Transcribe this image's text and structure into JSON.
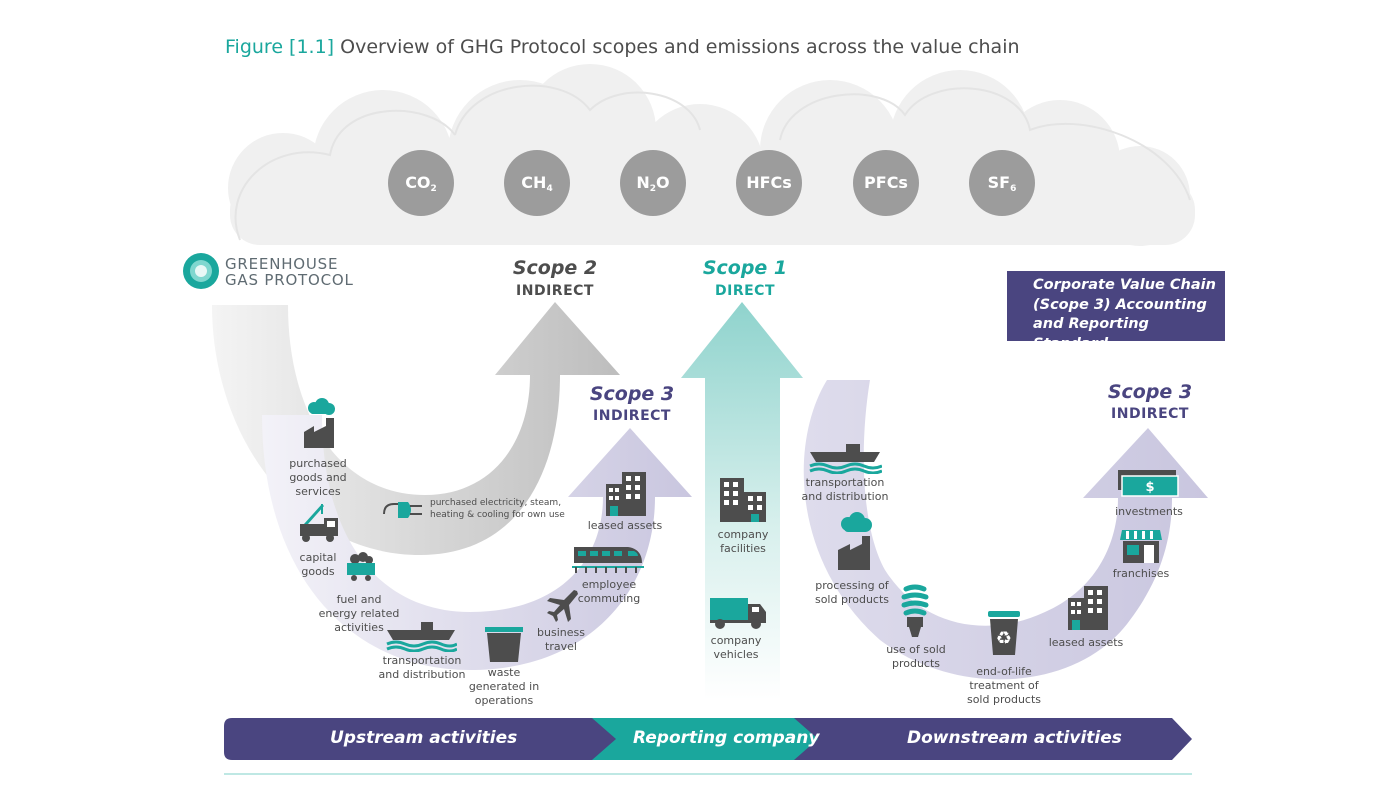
{
  "figure": {
    "label": "Figure [1.1]",
    "title": "Overview of GHG Protocol scopes and emissions across the value chain"
  },
  "logo": {
    "line1": "GREENHOUSE",
    "line2": "GAS PROTOCOL"
  },
  "gases": [
    {
      "base": "CO",
      "sub": "2"
    },
    {
      "base": "CH",
      "sub": "4"
    },
    {
      "base": "N",
      "sub": "2",
      "tail": "O"
    },
    {
      "base": "HFCs",
      "sub": ""
    },
    {
      "base": "PFCs",
      "sub": ""
    },
    {
      "base": "SF",
      "sub": "6"
    }
  ],
  "scopes": {
    "scope2": {
      "title": "Scope 2",
      "sub": "INDIRECT"
    },
    "scope1": {
      "title": "Scope 1",
      "sub": "DIRECT"
    },
    "scope3_up": {
      "title": "Scope 3",
      "sub": "INDIRECT"
    },
    "scope3_down": {
      "title": "Scope 3",
      "sub": "INDIRECT"
    }
  },
  "standard_box": {
    "line1": "Corporate Value Chain",
    "line2": "(Scope 3) Accounting",
    "line3": "and Reporting Standard"
  },
  "upstream": {
    "purchased_goods": [
      "purchased",
      "goods and",
      "services"
    ],
    "capital_goods": [
      "capital",
      "goods"
    ],
    "fuel_energy": [
      "fuel and",
      "energy related",
      "activities"
    ],
    "transport": [
      "transportation",
      "and distribution"
    ],
    "waste": [
      "waste",
      "generated in",
      "operations"
    ],
    "business_travel": [
      "business",
      "travel"
    ],
    "employee_commuting": [
      "employee",
      "commuting"
    ],
    "leased_assets": [
      "leased assets"
    ],
    "purchased_electricity": [
      "purchased electricity, steam,",
      "heating & cooling for own use"
    ]
  },
  "company": {
    "facilities": [
      "company",
      "facilities"
    ],
    "vehicles": [
      "company",
      "vehicles"
    ]
  },
  "downstream": {
    "transport": [
      "transportation",
      "and distribution"
    ],
    "processing": [
      "processing of",
      "sold products"
    ],
    "use": [
      "use of sold",
      "products"
    ],
    "end_of_life": [
      "end-of-life",
      "treatment of",
      "sold products"
    ],
    "leased_assets": [
      "leased assets"
    ],
    "franchises": [
      "franchises"
    ],
    "investments": [
      "investments"
    ]
  },
  "bands": {
    "upstream": "Upstream activities",
    "reporting": "Reporting company",
    "downstream": "Downstream activities"
  },
  "colors": {
    "teal": "#1aa79d",
    "purple": "#4a4580",
    "grey_circle": "#9c9c9c",
    "icon_dark": "#4d4d4d",
    "cloud": "#f0f0f0"
  }
}
